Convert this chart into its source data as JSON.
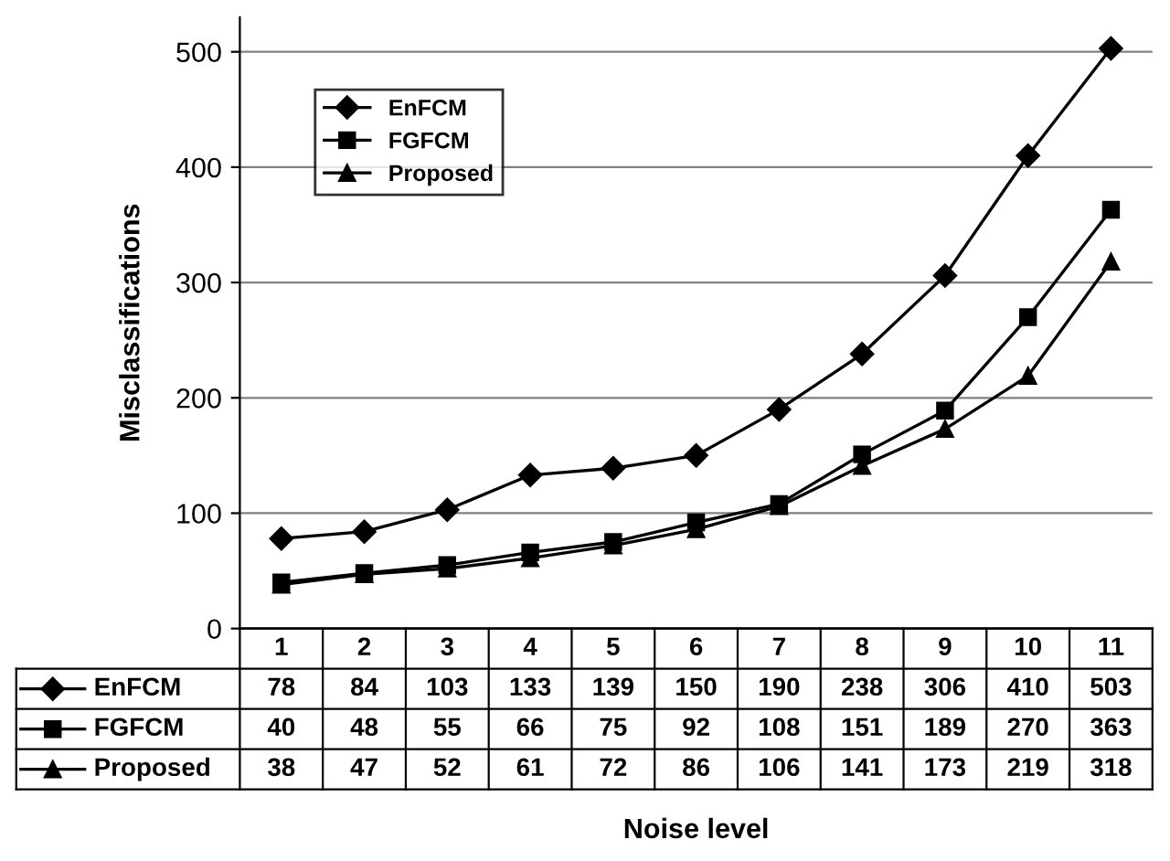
{
  "chart_data": {
    "type": "line",
    "annotations": [
      "Noise level"
    ],
    "ylabel": "Misclassifications",
    "categories": [
      "1",
      "2",
      "3",
      "4",
      "5",
      "6",
      "7",
      "8",
      "9",
      "10",
      "11"
    ],
    "series": [
      {
        "name": "EnFCM",
        "color": "#000000",
        "marker": "diamond",
        "values": [
          78,
          84,
          103,
          133,
          139,
          150,
          190,
          238,
          306,
          410,
          503
        ]
      },
      {
        "name": "FGFCM",
        "color": "#000000",
        "marker": "square",
        "values": [
          40,
          48,
          55,
          66,
          75,
          92,
          108,
          151,
          189,
          270,
          363
        ]
      },
      {
        "name": "Proposed",
        "color": "#000000",
        "marker": "triangle",
        "values": [
          38,
          47,
          52,
          61,
          72,
          86,
          106,
          141,
          173,
          219,
          318
        ]
      }
    ],
    "ylim": [
      0,
      530
    ],
    "yticks": [
      0,
      100,
      200,
      300,
      400,
      500
    ],
    "grid": "y",
    "legend": "top left",
    "data_labels": true,
    "line_style": "solid"
  }
}
